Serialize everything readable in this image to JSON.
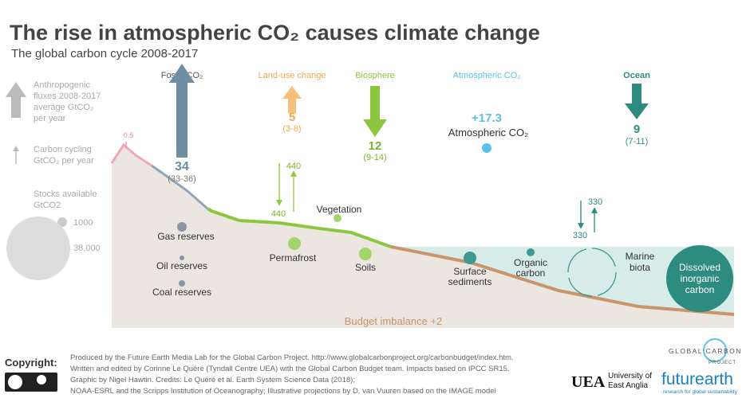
{
  "header": {
    "title": "The rise in atmospheric CO₂ causes climate change",
    "subtitle": "The global carbon cycle 2008-2017"
  },
  "legend": {
    "fluxes": [
      "Anthropogenic",
      "fluxes 2008-2017",
      "average GtCO₂",
      "per year"
    ],
    "cycling": [
      "Carbon cycling",
      "GtCO₂ per year"
    ],
    "stocks": [
      "Stocks available",
      "GtCO2"
    ],
    "stock_small": "1000",
    "stock_large": "38,000"
  },
  "fluxes": [
    {
      "label": "Fossil CO₂",
      "value": 34,
      "range": "(33-36)"
    },
    {
      "label": "Land-use change",
      "value": 5,
      "range": "(3-8)"
    },
    {
      "label": "Biosphere",
      "value": 12,
      "range": "(9-14)"
    },
    {
      "label": "Atmospheric CO₂",
      "value": "+17.3",
      "caption": "Atmospheric CO₂"
    },
    {
      "label": "Ocean",
      "value": 9,
      "range": "(7-11)"
    }
  ],
  "volcanic": 0.5,
  "cycling": {
    "land_down": 440,
    "land_up": 440,
    "ocean_down": 330,
    "ocean_up": 330
  },
  "stocks": [
    [
      "Gas reserves"
    ],
    [
      "Oil reserves"
    ],
    [
      "Coal reserves"
    ],
    [
      "Vegetation"
    ],
    [
      "Permafrost"
    ],
    [
      "Soils"
    ],
    [
      "Surface",
      "sediments"
    ],
    [
      "Organic",
      "carbon"
    ],
    [
      "Marine",
      "biota"
    ],
    [
      "Dissolved",
      "inorganic",
      "carbon"
    ]
  ],
  "budget_imbalance": "Budget imbalance +2",
  "footer": {
    "copyright": "Copyright:",
    "credits": [
      "Produced by the Future Earth Media Lab for the Global Carbon Project. http://www.globalcarbonproject.org/carbonbudget/index.htm.",
      "Written and edited by Corinne Le Quéré (Tyndall Centre UEA) with the Global Carbon Budget team. Impacts based on IPCC SR15.",
      "Graphic by Nigel Hawtin. Credits: Le Quéré et al. Earth System Science Data (2018);",
      "NOAA-ESRL and the Scripps Institution of Oceanography; Illustrative projections by D. van Vuuren based on the IMAGE model"
    ],
    "logos": {
      "gcp": [
        "GLOBAL CARBON",
        "PROJECT"
      ],
      "uea": [
        "UEA",
        "University of",
        "East Anglia"
      ],
      "futurearth": [
        "futurearth",
        "research for global sustainability"
      ]
    }
  }
}
